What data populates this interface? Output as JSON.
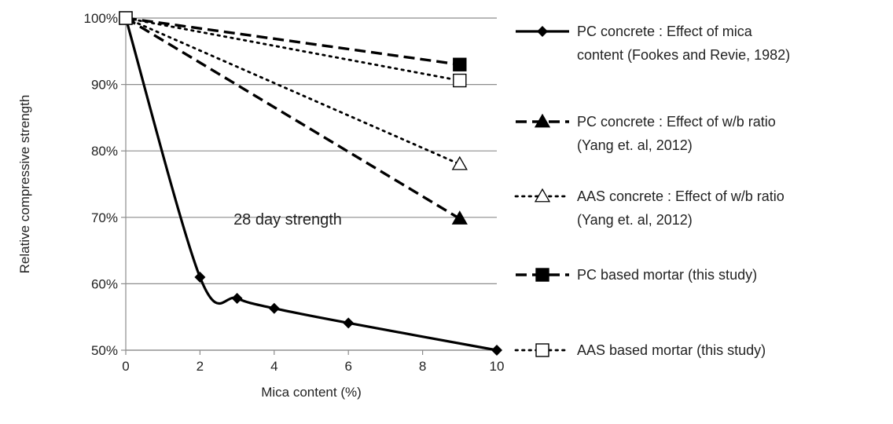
{
  "chart_data": {
    "type": "line",
    "xlabel": "Mica content (%)",
    "ylabel": "Relative compressive strength",
    "xlim": [
      0,
      10
    ],
    "ylim": [
      50,
      100
    ],
    "x_ticks": [
      0,
      2,
      4,
      6,
      8,
      10
    ],
    "y_ticks": [
      50,
      60,
      70,
      80,
      90,
      100
    ],
    "y_tick_labels": [
      "50%",
      "60%",
      "70%",
      "80%",
      "90%",
      "100%"
    ],
    "grid": "horizontal",
    "legend_position": "right",
    "annotation": "28 day strength",
    "series": [
      {
        "name_lines": [
          "PC concrete : Effect of mica",
          "content (Fookes and Revie, 1982)"
        ],
        "style": "solid",
        "marker": "diamond",
        "smooth": true,
        "x": [
          0,
          2,
          3,
          4,
          6,
          10
        ],
        "y": [
          100,
          61,
          57.8,
          56.3,
          54.1,
          50
        ]
      },
      {
        "name_lines": [
          "PC concrete : Effect of w/b ratio",
          "(Yang et. al, 2012)"
        ],
        "style": "dashed",
        "marker": "triangle-filled",
        "smooth": false,
        "x": [
          0,
          9
        ],
        "y": [
          100,
          69.8
        ]
      },
      {
        "name_lines": [
          "AAS concrete : Effect of w/b ratio",
          "(Yang et. al, 2012)"
        ],
        "style": "dotted",
        "marker": "triangle-open",
        "smooth": false,
        "x": [
          0,
          9
        ],
        "y": [
          100,
          78
        ]
      },
      {
        "name_lines": [
          "PC based mortar (this study)"
        ],
        "style": "dashed",
        "marker": "square-filled",
        "smooth": false,
        "x": [
          0,
          9
        ],
        "y": [
          100,
          93
        ]
      },
      {
        "name_lines": [
          "AAS based mortar (this study)"
        ],
        "style": "dotted",
        "marker": "square-open",
        "smooth": false,
        "x": [
          0,
          9
        ],
        "y": [
          100,
          90.6
        ]
      }
    ]
  }
}
